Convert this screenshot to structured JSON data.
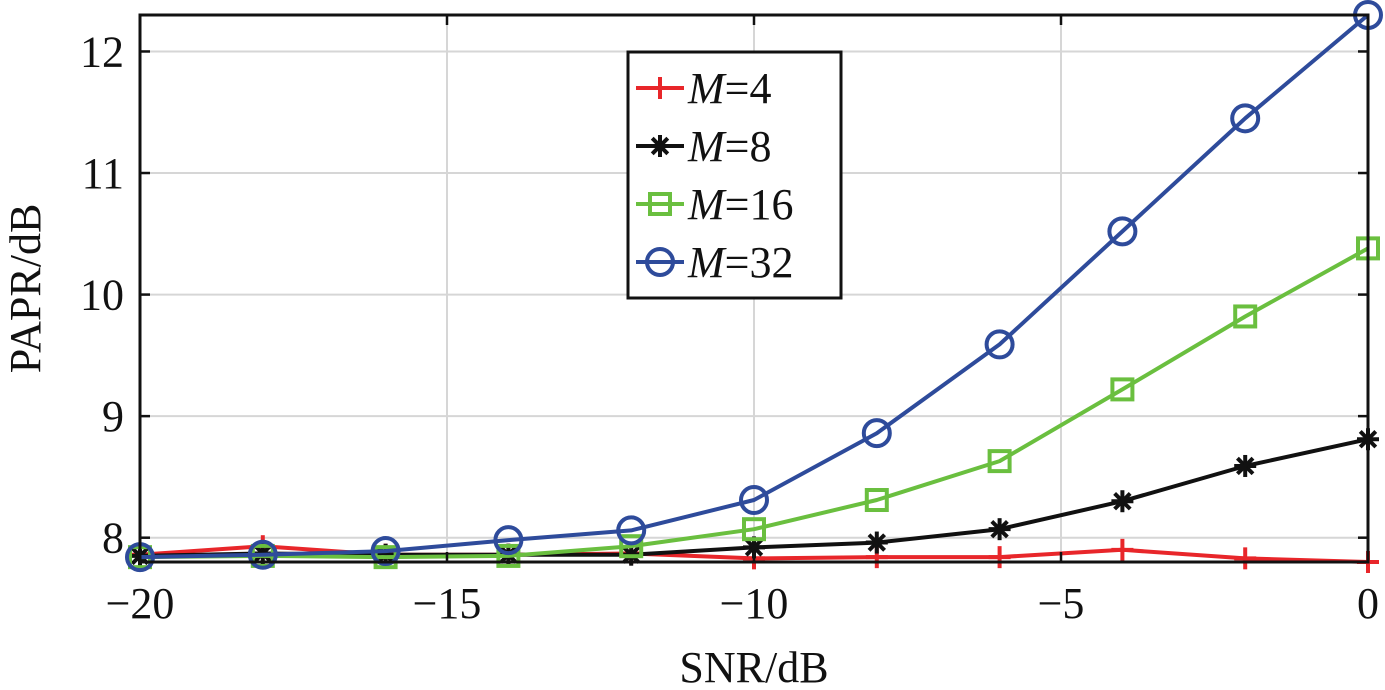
{
  "chart_data": {
    "type": "line",
    "title": "",
    "xlabel": "SNR/dB",
    "ylabel": "PAPR/dB",
    "xlim": [
      -20,
      0
    ],
    "ylim": [
      7.8,
      12.3
    ],
    "xticks": [
      -20,
      -15,
      -10,
      -5,
      0
    ],
    "xtick_labels": [
      "−20",
      "−15",
      "−10",
      "−5",
      "0"
    ],
    "yticks": [
      8,
      9,
      10,
      11,
      12
    ],
    "ytick_labels": [
      "8",
      "9",
      "10",
      "11",
      "12"
    ],
    "grid": true,
    "legend_position": "top-center",
    "x": [
      -20,
      -18,
      -16,
      -14,
      -12,
      -10,
      -8,
      -6,
      -4,
      -2,
      0
    ],
    "series": [
      {
        "name": "M=4",
        "name_italic_part": "M",
        "name_rest": "=4",
        "color": "#e8262a",
        "marker": "plus",
        "values": [
          7.86,
          7.93,
          7.86,
          7.86,
          7.87,
          7.83,
          7.84,
          7.84,
          7.9,
          7.83,
          7.8
        ]
      },
      {
        "name": "M=8",
        "name_italic_part": "M",
        "name_rest": "=8",
        "color": "#111111",
        "marker": "asterisk",
        "values": [
          7.85,
          7.87,
          7.86,
          7.86,
          7.86,
          7.92,
          7.96,
          8.07,
          8.3,
          8.59,
          8.81
        ]
      },
      {
        "name": "M=16",
        "name_italic_part": "M",
        "name_rest": "=16",
        "color": "#6abf3f",
        "marker": "square",
        "values": [
          7.84,
          7.85,
          7.84,
          7.85,
          7.93,
          8.07,
          8.31,
          8.63,
          9.22,
          9.82,
          10.38
        ]
      },
      {
        "name": "M=32",
        "name_italic_part": "M",
        "name_rest": "=32",
        "color": "#2e4b9b",
        "marker": "circle",
        "values": [
          7.84,
          7.86,
          7.89,
          7.98,
          8.06,
          8.31,
          8.86,
          9.59,
          10.52,
          11.45,
          12.3
        ]
      }
    ]
  }
}
